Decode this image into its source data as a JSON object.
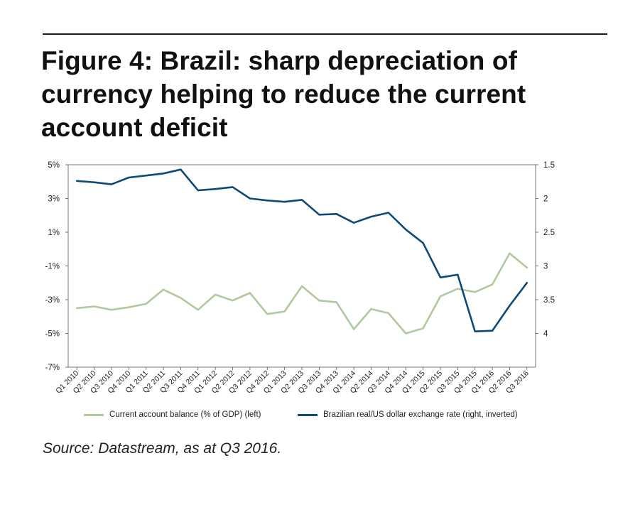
{
  "figure": {
    "title": "Figure 4: Brazil: sharp depreciation of currency helping to reduce the current account deficit",
    "source": "Source: Datastream, as at Q3 2016."
  },
  "legend": {
    "items": [
      {
        "label": "Current account balance (% of GDP) (left)",
        "color": "#b2c89f"
      },
      {
        "label": "Brazilian real/US dollar exchange rate (right, inverted)",
        "color": "#0d4a78"
      }
    ]
  },
  "chart_data": {
    "type": "line",
    "title": "",
    "grid": false,
    "categories": [
      "Q1 2010",
      "Q2 2010",
      "Q3 2010",
      "Q4 2010",
      "Q1 2011",
      "Q2 2011",
      "Q3 2011",
      "Q4 2011",
      "Q1 2012",
      "Q2 2012",
      "Q3 2012",
      "Q4 2012",
      "Q1 2013",
      "Q2 2013",
      "Q3 2013",
      "Q4 2013",
      "Q1 2014",
      "Q2 2014",
      "Q3 2014",
      "Q4 2014",
      "Q1 2015",
      "Q2 2015",
      "Q3 2015",
      "Q4 2015",
      "Q1 2016",
      "Q2 2016",
      "Q3 2016"
    ],
    "left_axis": {
      "ylim": [
        -7,
        5
      ],
      "ticks": [
        5,
        3,
        1,
        -1,
        -3,
        -5,
        -7
      ],
      "tick_labels": [
        "5%",
        "3%",
        "1%",
        "-1%",
        "-3%",
        "-5%",
        "-7%"
      ]
    },
    "right_axis": {
      "inverted": true,
      "ylim": [
        1.5,
        4.5
      ],
      "ticks": [
        1.5,
        2,
        2.5,
        3,
        3.5,
        4
      ],
      "tick_labels": [
        "1.5",
        "2",
        "2.5",
        "3",
        "3.5",
        "4"
      ]
    },
    "series": [
      {
        "name": "Current account balance (% of GDP) (left)",
        "axis": "left",
        "color": "#b2c89f",
        "values": [
          -3.5,
          -3.4,
          -3.6,
          -3.45,
          -3.25,
          -2.4,
          -2.9,
          -3.6,
          -2.7,
          -3.05,
          -2.6,
          -3.85,
          -3.7,
          -2.2,
          -3.05,
          -3.15,
          -4.75,
          -3.55,
          -3.8,
          -5.0,
          -4.7,
          -2.8,
          -2.35,
          -2.55,
          -2.1,
          -0.25,
          -1.1
        ]
      },
      {
        "name": "Brazilian real/US dollar exchange rate (right, inverted)",
        "axis": "right",
        "color": "#0d4a78",
        "values": [
          1.74,
          1.76,
          1.79,
          1.69,
          1.66,
          1.63,
          1.57,
          1.88,
          1.86,
          1.83,
          2.0,
          2.03,
          2.05,
          2.02,
          2.24,
          2.23,
          2.36,
          2.27,
          2.21,
          2.46,
          2.66,
          3.17,
          3.13,
          3.97,
          3.96,
          3.59,
          3.25
        ]
      }
    ]
  }
}
